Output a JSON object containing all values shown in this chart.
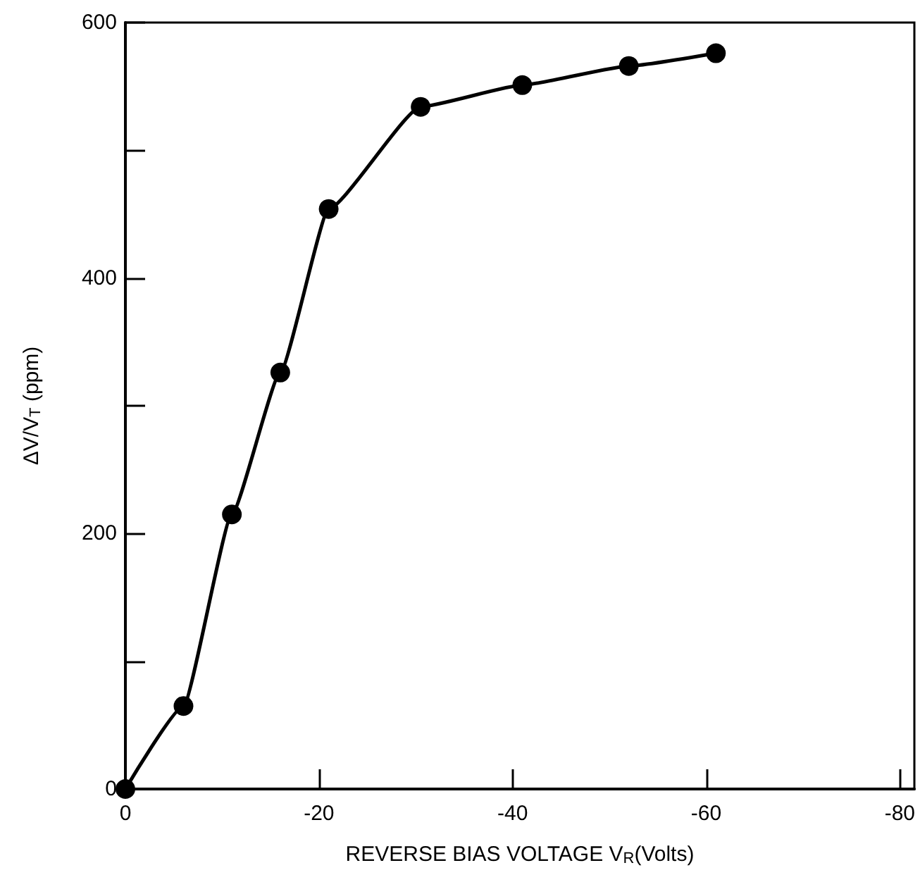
{
  "chart_data": {
    "type": "line",
    "xlabel": "REVERSE BIAS VOLTAGE V$_{R}$(Volts)",
    "ylabel": "ΔV/V$_{T}$ (ppm)",
    "x": [
      0,
      -6,
      -11,
      -16,
      -21,
      -30.5,
      -41,
      -52,
      -61
    ],
    "series": [
      {
        "color": "#000000",
        "values": [
          0,
          65,
          215,
          326,
          454,
          534,
          551,
          566,
          576
        ]
      }
    ],
    "xlim": [
      0,
      -81.5
    ],
    "xticks": [
      0,
      -20,
      -40,
      -60,
      -80
    ],
    "ylim": [
      0,
      600
    ],
    "yticks": [
      0,
      {
        "value": 100,
        "label": null
      },
      200,
      {
        "value": 300,
        "label": null
      },
      400,
      {
        "value": 500,
        "label": null
      },
      600
    ],
    "marker": "circle",
    "line_style": "solid",
    "grid": false
  }
}
